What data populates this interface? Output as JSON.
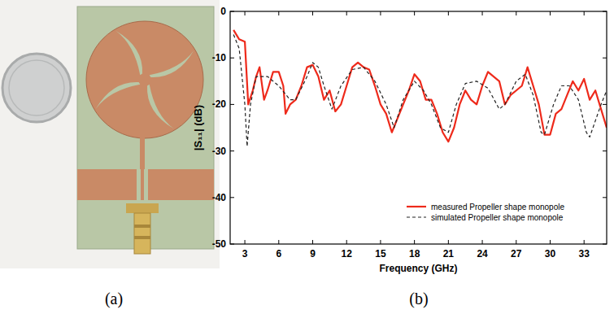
{
  "panel_labels": [
    "(a)",
    "(b)"
  ],
  "chart_data": {
    "type": "line",
    "x_label": "Frequency (GHz)",
    "y_label": "|S₁₁| (dB)",
    "xlim": [
      1.7,
      35
    ],
    "ylim": [
      -50,
      0
    ],
    "xticks": [
      3,
      6,
      9,
      12,
      15,
      18,
      21,
      24,
      27,
      30,
      33
    ],
    "yticks": [
      -50,
      -40,
      -30,
      -20,
      -10,
      0
    ],
    "grid": false,
    "legend": "lower right",
    "series": [
      {
        "name": "measured Propeller shape monopole",
        "color": "#ee2a1b",
        "line_style": "solid",
        "x": [
          2,
          2.5,
          3,
          3.3,
          3.7,
          4,
          4.3,
          4.7,
          5,
          5.5,
          6,
          6.4,
          6.6,
          7,
          7.5,
          8,
          8.5,
          9,
          9.5,
          10,
          10.5,
          11,
          11.5,
          12,
          12.5,
          13,
          13.5,
          14,
          14.5,
          15,
          15.5,
          16,
          16.5,
          17,
          17.5,
          18,
          18.5,
          19,
          19.5,
          20,
          20.5,
          21,
          21.5,
          22,
          22.5,
          23,
          23.5,
          24,
          24.5,
          25,
          25.5,
          26,
          26.5,
          27,
          27.5,
          28,
          28.5,
          29,
          29.5,
          30,
          30.5,
          31,
          31.5,
          32,
          32.5,
          33,
          33.5,
          34,
          34.5,
          35
        ],
        "values": [
          -4,
          -6,
          -6.5,
          -20,
          -17,
          -14,
          -12,
          -19,
          -17,
          -13,
          -13,
          -16,
          -22,
          -20,
          -19,
          -16,
          -12,
          -11.5,
          -14,
          -19,
          -17,
          -21.5,
          -20,
          -16,
          -12,
          -11,
          -12,
          -12.5,
          -16,
          -20,
          -22,
          -26,
          -23,
          -20,
          -17,
          -13.5,
          -15,
          -19,
          -19,
          -22,
          -26,
          -28,
          -25,
          -20,
          -17,
          -19,
          -20,
          -16,
          -13,
          -14,
          -15,
          -20,
          -18,
          -17,
          -16,
          -12,
          -16,
          -20,
          -26.5,
          -26.5,
          -22,
          -21,
          -18,
          -15,
          -17,
          -14.5,
          -19,
          -17,
          -21,
          -25
        ]
      },
      {
        "name": "simulated Propeller shape monopole",
        "color": "#222222",
        "line_style": "dashed",
        "x": [
          2,
          2.5,
          3,
          3.2,
          3.5,
          4,
          5,
          6,
          7,
          7.5,
          8.5,
          9,
          9.5,
          10,
          10.7,
          11.5,
          12.5,
          13.5,
          14.5,
          15.5,
          16.2,
          17,
          18,
          18.8,
          19.5,
          20.3,
          21,
          21.7,
          22.5,
          23.5,
          24.5,
          25.5,
          26,
          27,
          27.8,
          28.5,
          29.2,
          29.5,
          30.3,
          31,
          31.7,
          32.5,
          33.2,
          33.5,
          34.5,
          35
        ],
        "values": [
          -5,
          -8,
          -20,
          -29,
          -20,
          -14,
          -14,
          -16,
          -19,
          -19,
          -14,
          -11,
          -12,
          -16,
          -21,
          -16,
          -12.5,
          -12,
          -15,
          -20,
          -25,
          -19,
          -15,
          -17,
          -20,
          -25,
          -26,
          -20,
          -15.5,
          -15,
          -16.5,
          -21,
          -20,
          -15,
          -13.5,
          -18,
          -26,
          -26.5,
          -20,
          -16,
          -16,
          -19,
          -26,
          -27,
          -20,
          -17
        ]
      }
    ]
  }
}
